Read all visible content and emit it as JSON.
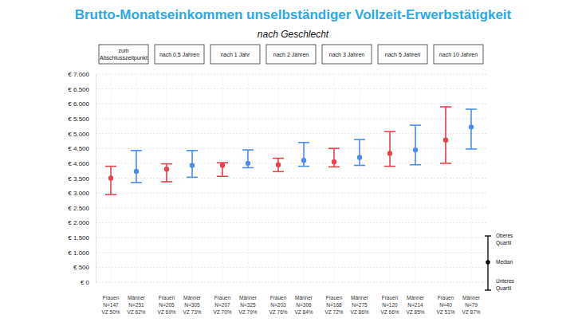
{
  "chart_data": {
    "type": "errorbar",
    "title": "Brutto-Monatseinkommen unselbständiger Vollzeit-Erwerbstätigkeit",
    "subtitle": "nach Geschlecht",
    "categories": [
      "zum Abschlusszeitpunkt",
      "nach 0,5 Jahren",
      "nach 1 Jahr",
      "nach 2 Jahren",
      "nach 3 Jahren",
      "nach 5 Jahren",
      "nach 10 Jahren"
    ],
    "series": [
      {
        "name": "Frauen",
        "color": "#e3434b",
        "marker": "circle",
        "values": [
          3500,
          3800,
          3930,
          3950,
          4050,
          4330,
          4780
        ],
        "q1": [
          2950,
          3380,
          3560,
          3720,
          3880,
          3900,
          4000
        ],
        "q3": [
          3900,
          3980,
          4020,
          4170,
          4500,
          5070,
          5900
        ],
        "n_labels": [
          "N=147",
          "N=205",
          "N=207",
          "N=203",
          "N=168",
          "N=120",
          "N=40"
        ],
        "vz_labels": [
          "VZ 50%",
          "VZ 69%",
          "VZ 70%",
          "VZ 76%",
          "VZ 72%",
          "VZ 66%",
          "VZ 51%"
        ]
      },
      {
        "name": "Männer",
        "color": "#4a8fe7",
        "marker": "circle",
        "values": [
          3730,
          3930,
          4000,
          4100,
          4200,
          4450,
          5220
        ],
        "q1": [
          3350,
          3530,
          3850,
          3900,
          3930,
          3950,
          4480
        ],
        "q3": [
          4430,
          4430,
          4450,
          4700,
          4800,
          5280,
          5820
        ],
        "n_labels": [
          "N=251",
          "N=305",
          "N=325",
          "N=306",
          "N=275",
          "N=214",
          "N=79"
        ],
        "vz_labels": [
          "VZ 62%",
          "VZ 73%",
          "VZ 79%",
          "VZ 84%",
          "VZ 86%",
          "VZ 85%",
          "VZ 87%"
        ]
      }
    ],
    "ylim": [
      0,
      7000
    ],
    "yticks": [
      {
        "value": 0,
        "label": "€ 0"
      },
      {
        "value": 500,
        "label": "€ 500"
      },
      {
        "value": 1000,
        "label": "€ 1.000"
      },
      {
        "value": 1500,
        "label": "€ 1.500"
      },
      {
        "value": 2000,
        "label": "€ 2.000"
      },
      {
        "value": 2500,
        "label": "€ 2.500"
      },
      {
        "value": 3000,
        "label": "€ 3.000"
      },
      {
        "value": 3500,
        "label": "€ 3.500"
      },
      {
        "value": 4000,
        "label": "€ 4.000"
      },
      {
        "value": 4500,
        "label": "€ 4.500"
      },
      {
        "value": 5000,
        "label": "€ 5.000"
      },
      {
        "value": 5500,
        "label": "€ 5.500"
      },
      {
        "value": 6000,
        "label": "€ 6.000"
      },
      {
        "value": 6500,
        "label": "€ 6.500"
      },
      {
        "value": 7000,
        "label": "€ 7.000"
      }
    ],
    "grid": true,
    "legend": "right",
    "legend_labels": {
      "upper": "Oberes Quartil",
      "median": "Median",
      "lower": "Unteres Quartil"
    }
  }
}
